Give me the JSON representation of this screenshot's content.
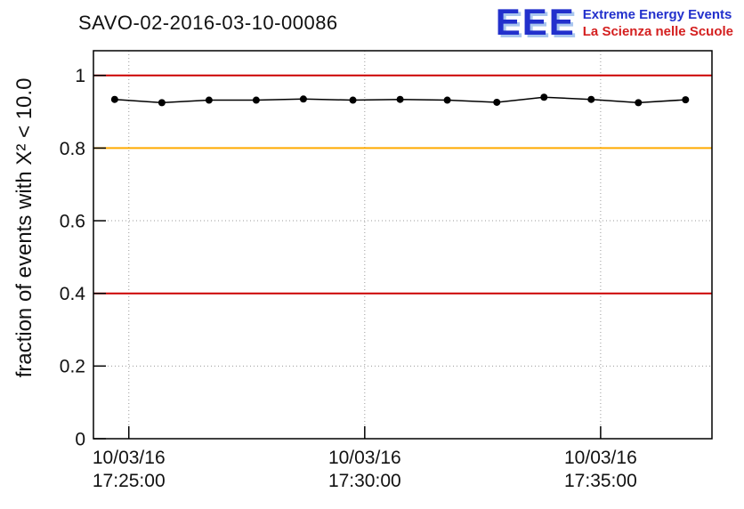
{
  "header": {
    "title": "SAVO-02-2016-03-10-00086"
  },
  "logo": {
    "acronym": "EEE",
    "line1": "Extreme Energy Events",
    "line2": "La Scienza nelle Scuole",
    "acronym_color": "#2230cc",
    "line1_color": "#2230cc",
    "line2_color": "#d42020"
  },
  "chart_data": {
    "type": "line",
    "title": "SAVO-02-2016-03-10-00086",
    "xlabel": "",
    "ylabel": "fraction of events with X² < 10.0",
    "ylim": [
      0,
      1.068
    ],
    "xlim_minutes": [
      24.25,
      37.36
    ],
    "grid": true,
    "legend_position": "none",
    "yticks": [
      {
        "value": 0,
        "label": "0"
      },
      {
        "value": 0.2,
        "label": "0.2"
      },
      {
        "value": 0.4,
        "label": "0.4"
      },
      {
        "value": 0.6,
        "label": "0.6"
      },
      {
        "value": 0.8,
        "label": "0.8"
      },
      {
        "value": 1,
        "label": "1"
      }
    ],
    "xticks": [
      {
        "minute": 25,
        "label_date": "10/03/16",
        "label_time": "17:25:00"
      },
      {
        "minute": 30,
        "label_date": "10/03/16",
        "label_time": "17:30:00"
      },
      {
        "minute": 35,
        "label_date": "10/03/16",
        "label_time": "17:35:00"
      }
    ],
    "reference_lines": [
      {
        "y": 1.0,
        "color": "#cc0000"
      },
      {
        "y": 0.8,
        "color": "#ffaa00"
      },
      {
        "y": 0.4,
        "color": "#cc0000"
      }
    ],
    "series": [
      {
        "name": "fraction of events with chi2 < 10",
        "color": "#000000",
        "marker": "circle",
        "x_minutes": [
          24.7,
          25.7,
          26.7,
          27.7,
          28.7,
          29.75,
          30.75,
          31.75,
          32.8,
          33.8,
          34.8,
          35.8,
          36.8
        ],
        "values": [
          0.934,
          0.925,
          0.932,
          0.932,
          0.935,
          0.932,
          0.934,
          0.932,
          0.926,
          0.94,
          0.934,
          0.925,
          0.933
        ]
      }
    ]
  }
}
